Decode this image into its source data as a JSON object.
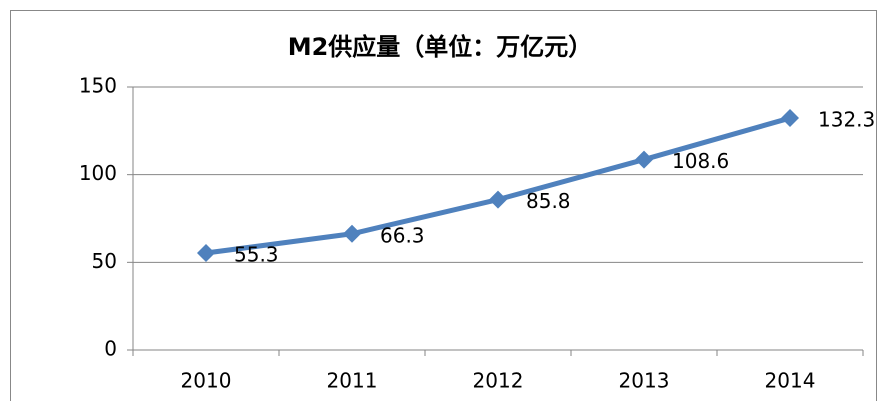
{
  "chart_data": {
    "type": "line",
    "title": "M2供应量（单位：万亿元）",
    "categories": [
      "2010",
      "2011",
      "2012",
      "2013",
      "2014"
    ],
    "series": [
      {
        "name": "M2供应量",
        "color": "#4f81bd",
        "values": [
          55.3,
          66.3,
          85.8,
          108.6,
          132.3
        ]
      }
    ],
    "ylim": [
      0,
      150
    ],
    "yticks": [
      0,
      50,
      100,
      150
    ],
    "grid": true
  }
}
